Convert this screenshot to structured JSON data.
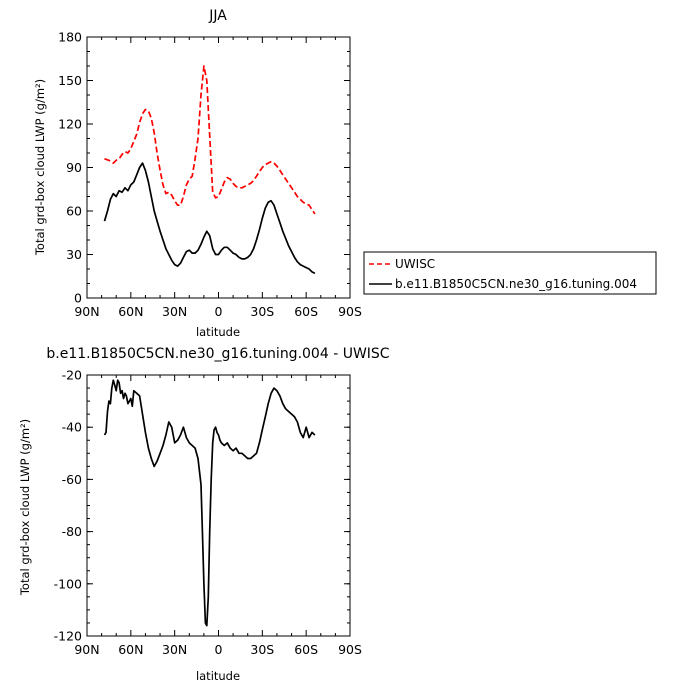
{
  "chart_data": [
    {
      "type": "line",
      "title": "JJA",
      "xlabel": "latitude",
      "ylabel": "Total grd-box cloud LWP (g/m²)",
      "xlim": [
        90,
        -90
      ],
      "ylim": [
        0,
        180
      ],
      "x_tick_labels": [
        "90N",
        "60N",
        "30N",
        "0",
        "30S",
        "60S",
        "90S"
      ],
      "y_tick_labels": [
        "0",
        "30",
        "60",
        "90",
        "120",
        "150",
        "180"
      ],
      "legend_placement": "right",
      "series": [
        {
          "name": "UWISC",
          "color": "#ff0000",
          "dash": "dashed",
          "x": [
            78,
            75,
            72,
            70,
            68,
            66,
            64,
            62,
            60,
            58,
            56,
            54,
            52,
            50,
            48,
            46,
            44,
            42,
            40,
            38,
            36,
            34,
            32,
            30,
            28,
            26,
            24,
            22,
            20,
            18,
            16,
            14,
            12,
            10,
            8,
            6,
            4,
            2,
            0,
            -2,
            -4,
            -6,
            -8,
            -10,
            -12,
            -14,
            -16,
            -18,
            -20,
            -22,
            -24,
            -26,
            -28,
            -30,
            -32,
            -34,
            -36,
            -38,
            -40,
            -42,
            -44,
            -46,
            -48,
            -50,
            -52,
            -54,
            -56,
            -58,
            -60,
            -62,
            -64,
            -66
          ],
          "values": [
            96,
            95,
            93,
            95,
            96,
            99,
            101,
            100,
            103,
            108,
            113,
            121,
            127,
            130,
            129,
            124,
            114,
            100,
            88,
            78,
            72,
            73,
            71,
            67,
            64,
            64,
            70,
            78,
            82,
            84,
            96,
            110,
            140,
            160,
            150,
            112,
            73,
            69,
            70,
            75,
            80,
            83,
            82,
            79,
            77,
            76,
            76,
            77,
            78,
            79,
            81,
            84,
            87,
            90,
            92,
            93,
            94,
            93,
            91,
            88,
            85,
            82,
            79,
            76,
            73,
            70,
            68,
            66,
            65,
            64,
            61,
            58
          ]
        },
        {
          "name": "b.e11.B1850C5CN.ne30_g16.tuning.004",
          "color": "#000000",
          "dash": "solid",
          "x": [
            78,
            76,
            74,
            72,
            70,
            68,
            66,
            64,
            62,
            60,
            58,
            56,
            54,
            52,
            50,
            48,
            46,
            44,
            42,
            40,
            38,
            36,
            34,
            32,
            30,
            28,
            26,
            24,
            22,
            20,
            18,
            16,
            14,
            12,
            10,
            8,
            6,
            4,
            2,
            0,
            -2,
            -4,
            -6,
            -8,
            -10,
            -12,
            -14,
            -16,
            -18,
            -20,
            -22,
            -24,
            -26,
            -28,
            -30,
            -32,
            -34,
            -36,
            -38,
            -40,
            -42,
            -44,
            -46,
            -48,
            -50,
            -52,
            -54,
            -56,
            -58,
            -60,
            -62,
            -64,
            -66
          ],
          "values": [
            53,
            60,
            68,
            72,
            70,
            74,
            73,
            76,
            74,
            78,
            80,
            85,
            90,
            93,
            88,
            80,
            70,
            60,
            53,
            46,
            40,
            34,
            30,
            26,
            23,
            22,
            24,
            28,
            32,
            33,
            31,
            31,
            33,
            37,
            42,
            46,
            43,
            34,
            30,
            30,
            33,
            35,
            35,
            33,
            31,
            30,
            28,
            27,
            27,
            28,
            30,
            34,
            40,
            47,
            55,
            62,
            66,
            67,
            64,
            58,
            52,
            46,
            41,
            36,
            32,
            28,
            25,
            23,
            22,
            21,
            20,
            18,
            17
          ]
        }
      ]
    },
    {
      "type": "line",
      "title": "b.e11.B1850C5CN.ne30_g16.tuning.004 - UWISC",
      "xlabel": "latitude",
      "ylabel": "Total grd-box cloud LWP (g/m²)",
      "xlim": [
        90,
        -90
      ],
      "ylim": [
        -120,
        -20
      ],
      "x_tick_labels": [
        "90N",
        "60N",
        "30N",
        "0",
        "30S",
        "60S",
        "90S"
      ],
      "y_tick_labels": [
        "-120",
        "-100",
        "-80",
        "-60",
        "-40",
        "-20"
      ],
      "series": [
        {
          "color": "#000000",
          "dash": "solid",
          "x": [
            78,
            77,
            76,
            75,
            74,
            73,
            72,
            71,
            70,
            69,
            68,
            67,
            66,
            65,
            64,
            63,
            62,
            61,
            60,
            59,
            58,
            56,
            54,
            52,
            50,
            48,
            46,
            44,
            42,
            40,
            38,
            36,
            34,
            32,
            30,
            28,
            26,
            24,
            22,
            20,
            18,
            16,
            14,
            12,
            11,
            10,
            9,
            8,
            7,
            6,
            5,
            4,
            3,
            2,
            1,
            0,
            -1,
            -2,
            -4,
            -6,
            -8,
            -10,
            -12,
            -14,
            -16,
            -18,
            -20,
            -22,
            -24,
            -26,
            -28,
            -30,
            -32,
            -34,
            -36,
            -38,
            -40,
            -42,
            -44,
            -46,
            -48,
            -50,
            -52,
            -54,
            -56,
            -58,
            -60,
            -62,
            -64,
            -66
          ],
          "values": [
            -43,
            -42,
            -34,
            -30,
            -31,
            -25,
            -22,
            -24,
            -26,
            -22,
            -23,
            -27,
            -26,
            -29,
            -27,
            -28,
            -31,
            -30,
            -29,
            -32,
            -26,
            -27,
            -28,
            -35,
            -42,
            -48,
            -52,
            -55,
            -53,
            -50,
            -47,
            -43,
            -38,
            -40,
            -46,
            -45,
            -43,
            -40,
            -44,
            -46,
            -47,
            -48,
            -52,
            -62,
            -80,
            -100,
            -115,
            -116,
            -105,
            -80,
            -60,
            -46,
            -41,
            -40,
            -42,
            -43,
            -45,
            -46,
            -47,
            -46,
            -48,
            -49,
            -48,
            -50,
            -50,
            -51,
            -52,
            -52,
            -51,
            -50,
            -46,
            -41,
            -36,
            -31,
            -27,
            -25,
            -26,
            -28,
            -31,
            -33,
            -34,
            -35,
            -36,
            -38,
            -42,
            -44,
            -40,
            -44,
            -42,
            -43
          ]
        }
      ]
    }
  ]
}
